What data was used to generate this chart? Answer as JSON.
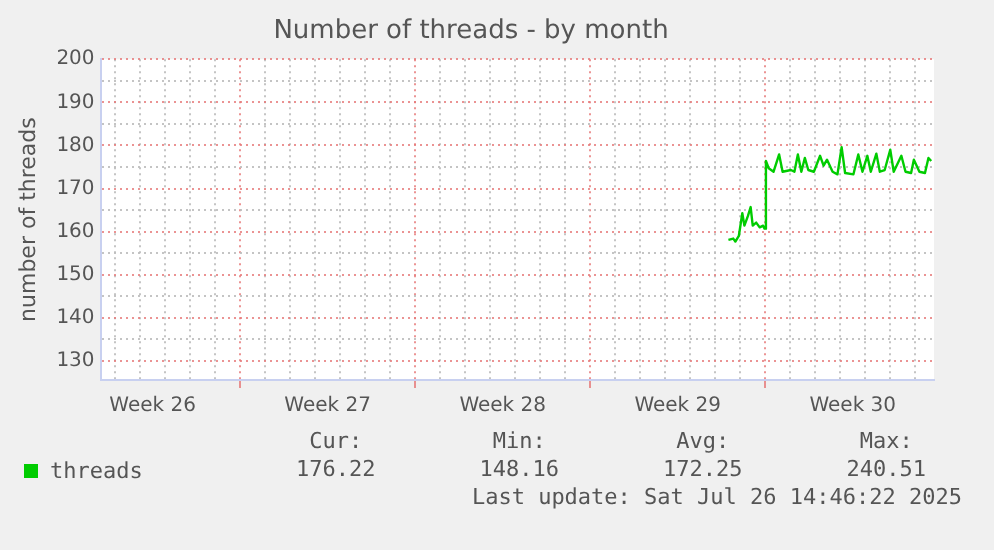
{
  "chart_data": {
    "type": "line",
    "title": "Number of threads - by month",
    "ylabel": "number of threads",
    "xlim": [
      "2025-06-24T10:00",
      "2025-07-27T18:00"
    ],
    "xticks": [
      {
        "value": "2025-06-25",
        "label": null
      },
      {
        "value": "2025-06-26",
        "label": null
      },
      {
        "value": "2025-06-26T12:00",
        "label": "Week 26"
      },
      {
        "value": "2025-06-27",
        "label": null
      },
      {
        "value": "2025-06-28",
        "label": null
      },
      {
        "value": "2025-06-29",
        "label": null
      },
      {
        "value": "2025-06-30",
        "label": null
      },
      {
        "value": "2025-07-01",
        "label": null
      },
      {
        "value": "2025-07-02",
        "label": null
      },
      {
        "value": "2025-07-03",
        "label": null
      },
      {
        "value": "2025-07-03T12:00",
        "label": "Week 27"
      },
      {
        "value": "2025-07-04",
        "label": null
      },
      {
        "value": "2025-07-05",
        "label": null
      },
      {
        "value": "2025-07-06",
        "label": null
      },
      {
        "value": "2025-07-07",
        "label": null
      },
      {
        "value": "2025-07-08",
        "label": null
      },
      {
        "value": "2025-07-09",
        "label": null
      },
      {
        "value": "2025-07-10",
        "label": null
      },
      {
        "value": "2025-07-10T12:00",
        "label": "Week 28"
      },
      {
        "value": "2025-07-11",
        "label": null
      },
      {
        "value": "2025-07-12",
        "label": null
      },
      {
        "value": "2025-07-13",
        "label": null
      },
      {
        "value": "2025-07-14",
        "label": null
      },
      {
        "value": "2025-07-15",
        "label": null
      },
      {
        "value": "2025-07-16",
        "label": null
      },
      {
        "value": "2025-07-17",
        "label": null
      },
      {
        "value": "2025-07-17T12:00",
        "label": "Week 29"
      },
      {
        "value": "2025-07-18",
        "label": null
      },
      {
        "value": "2025-07-19",
        "label": null
      },
      {
        "value": "2025-07-20",
        "label": null
      },
      {
        "value": "2025-07-21",
        "label": null
      },
      {
        "value": "2025-07-22",
        "label": null
      },
      {
        "value": "2025-07-23",
        "label": null
      },
      {
        "value": "2025-07-24",
        "label": null
      },
      {
        "value": "2025-07-24T12:00",
        "label": "Week 30"
      },
      {
        "value": "2025-07-25",
        "label": null
      },
      {
        "value": "2025-07-26",
        "label": null
      },
      {
        "value": "2025-07-27",
        "label": null
      }
    ],
    "ylim": [
      125.6,
      200
    ],
    "yticks": [
      130,
      {
        "value": 135,
        "label": null
      },
      140,
      {
        "value": 145,
        "label": null
      },
      150,
      {
        "value": 155,
        "label": null
      },
      160,
      {
        "value": 165,
        "label": null
      },
      170,
      {
        "value": 175,
        "label": null
      },
      180,
      {
        "value": 185,
        "label": null
      },
      190,
      {
        "value": 195,
        "label": null
      },
      200
    ],
    "grid": true,
    "legend": "bottom",
    "marker": "none",
    "line_style": "solid",
    "series": [
      {
        "name": "threads",
        "color": "#00cc00",
        "x": [
          "2025-07-19T12:40",
          "2025-07-19T17:20",
          "2025-07-19T19:20",
          "2025-07-19T22:40",
          "2025-07-20T02:00",
          "2025-07-20T04:00",
          "2025-07-20T07:20",
          "2025-07-20T10:00",
          "2025-07-20T12:00",
          "2025-07-20T15:20",
          "2025-07-20T18:40",
          "2025-07-20T22:00",
          "2025-07-20T23:20",
          "2025-07-21T00:40",
          "2025-07-21T03:20",
          "2025-07-21T08:00",
          "2025-07-21T13:20",
          "2025-07-21T16:40",
          "2025-07-22T00:40",
          "2025-07-22T04:00",
          "2025-07-22T07:20",
          "2025-07-22T10:40",
          "2025-07-22T14:00",
          "2025-07-22T17:20",
          "2025-07-22T22:40",
          "2025-07-23T04:40",
          "2025-07-23T08:00",
          "2025-07-23T11:20",
          "2025-07-23T16:40",
          "2025-07-23T21:20",
          "2025-07-24T01:20",
          "2025-07-24T04:40",
          "2025-07-24T12:40",
          "2025-07-24T17:20",
          "2025-07-24T21:20",
          "2025-07-25T02:00",
          "2025-07-25T05:20",
          "2025-07-25T10:40",
          "2025-07-25T14:00",
          "2025-07-25T18:40",
          "2025-07-26T00:00",
          "2025-07-26T03:20",
          "2025-07-26T10:40",
          "2025-07-26T14:40",
          "2025-07-26T20:00",
          "2025-07-26T22:40",
          "2025-07-27T04:00",
          "2025-07-27T09:20",
          "2025-07-27T12:40",
          "2025-07-27T15:20"
        ],
        "values": [
          158.1,
          158.4,
          157.7,
          159.0,
          164.3,
          161.4,
          163.6,
          165.7,
          161.4,
          162.1,
          161.0,
          161.4,
          160.7,
          176.4,
          174.7,
          173.9,
          177.9,
          173.9,
          174.3,
          173.9,
          177.9,
          173.9,
          177.1,
          174.3,
          173.9,
          177.6,
          175.3,
          176.7,
          173.9,
          173.3,
          179.6,
          173.6,
          173.3,
          177.9,
          173.9,
          177.6,
          173.9,
          178.1,
          173.9,
          174.3,
          179.0,
          173.9,
          177.6,
          173.9,
          173.6,
          176.7,
          173.9,
          173.6,
          177.1,
          176.4
        ]
      }
    ],
    "annotations": [
      "Cur:\n176.22",
      "Min:\n148.16",
      "Avg:\n172.25",
      "Max:\n240.51",
      "Last update: Sat Jul 26 14:46:22 2025"
    ]
  }
}
